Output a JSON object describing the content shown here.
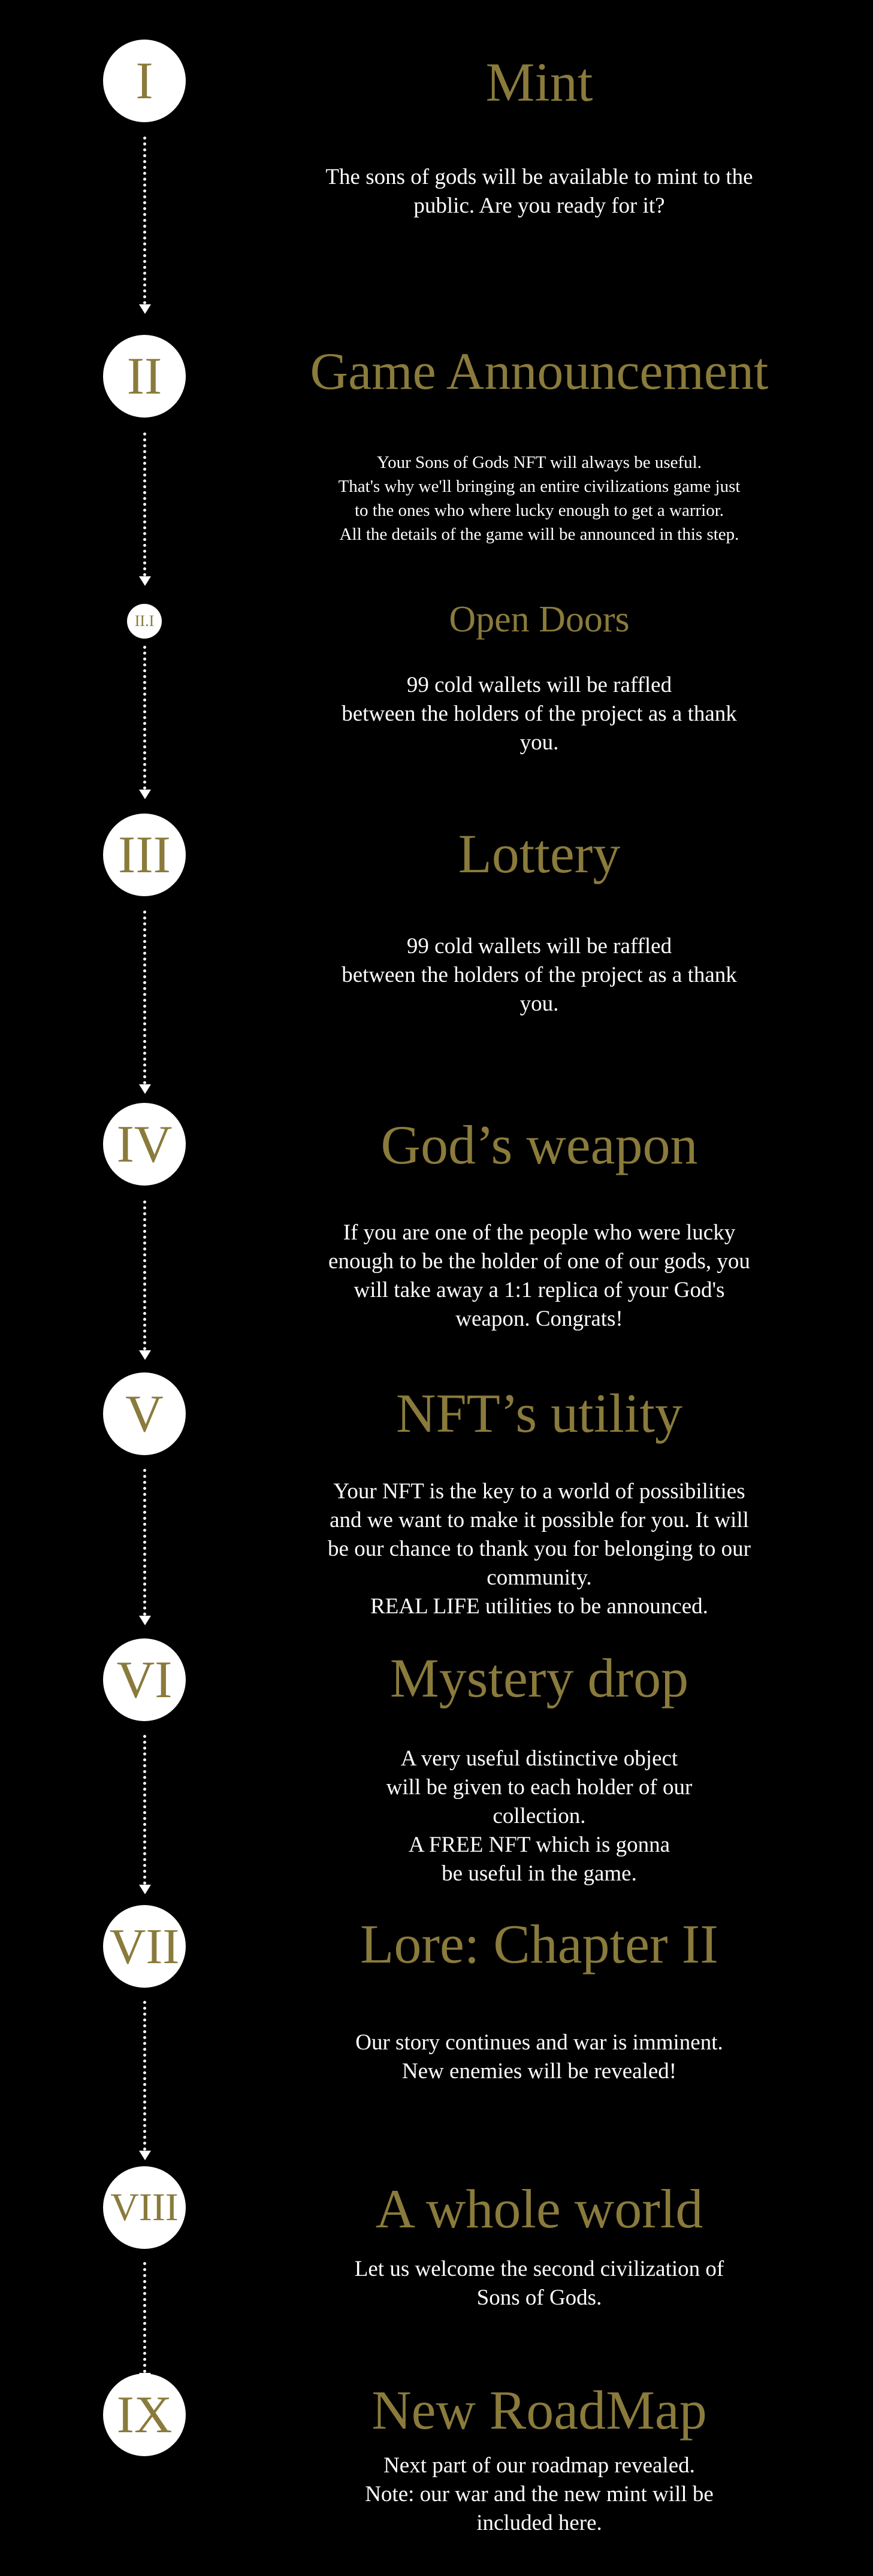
{
  "colors": {
    "background": "#000000",
    "gold": "#8a7b3c",
    "text": "#ffffff",
    "node": "#ffffff"
  },
  "steps": [
    {
      "numeral": "I",
      "title": "Mint",
      "description": "The sons of gods will be available to mint to the\npublic. Are you ready for it?"
    },
    {
      "numeral": "II",
      "title": "Game Announcement",
      "description": "Your Sons of Gods NFT will always be useful.\nThat's why we'll bringing an entire civilizations game just\nto the ones who where lucky enough to get a warrior.\nAll the details of the game will be announced in this step."
    },
    {
      "numeral": "II.I",
      "title": "Open Doors",
      "description": "99 cold wallets will be raffled\nbetween the holders of the project as a thank\nyou."
    },
    {
      "numeral": "III",
      "title": "Lottery",
      "description": "99 cold wallets will be raffled\nbetween the holders of the project as a thank\nyou."
    },
    {
      "numeral": "IV",
      "title": "God’s weapon",
      "description": "If you are one of the people who were lucky\nenough to be the holder of one of our gods, you\nwill take away a 1:1 replica of your God's\nweapon. Congrats!"
    },
    {
      "numeral": "V",
      "title": "NFT’s utility",
      "description": "Your NFT is the key to a world of possibilities\nand we want to make it possible for you. It will\nbe our chance to thank you for belonging to our\ncommunity.\nREAL LIFE utilities to be announced."
    },
    {
      "numeral": "VI",
      "title": "Mystery drop",
      "description": "A very useful distinctive object\nwill be given to each holder of our\ncollection.\nA FREE NFT which is gonna\nbe useful in the game."
    },
    {
      "numeral": "VII",
      "title": "Lore: Chapter II",
      "description": "Our story continues and war is imminent.\nNew enemies will be revealed!"
    },
    {
      "numeral": "VIII",
      "title": "A whole world",
      "description": "Let us welcome the second civilization of\nSons of Gods."
    },
    {
      "numeral": "IX",
      "title": "New RoadMap",
      "description": "Next part of our roadmap revealed.\nNote: our war and the new mint will be\nincluded here."
    }
  ]
}
